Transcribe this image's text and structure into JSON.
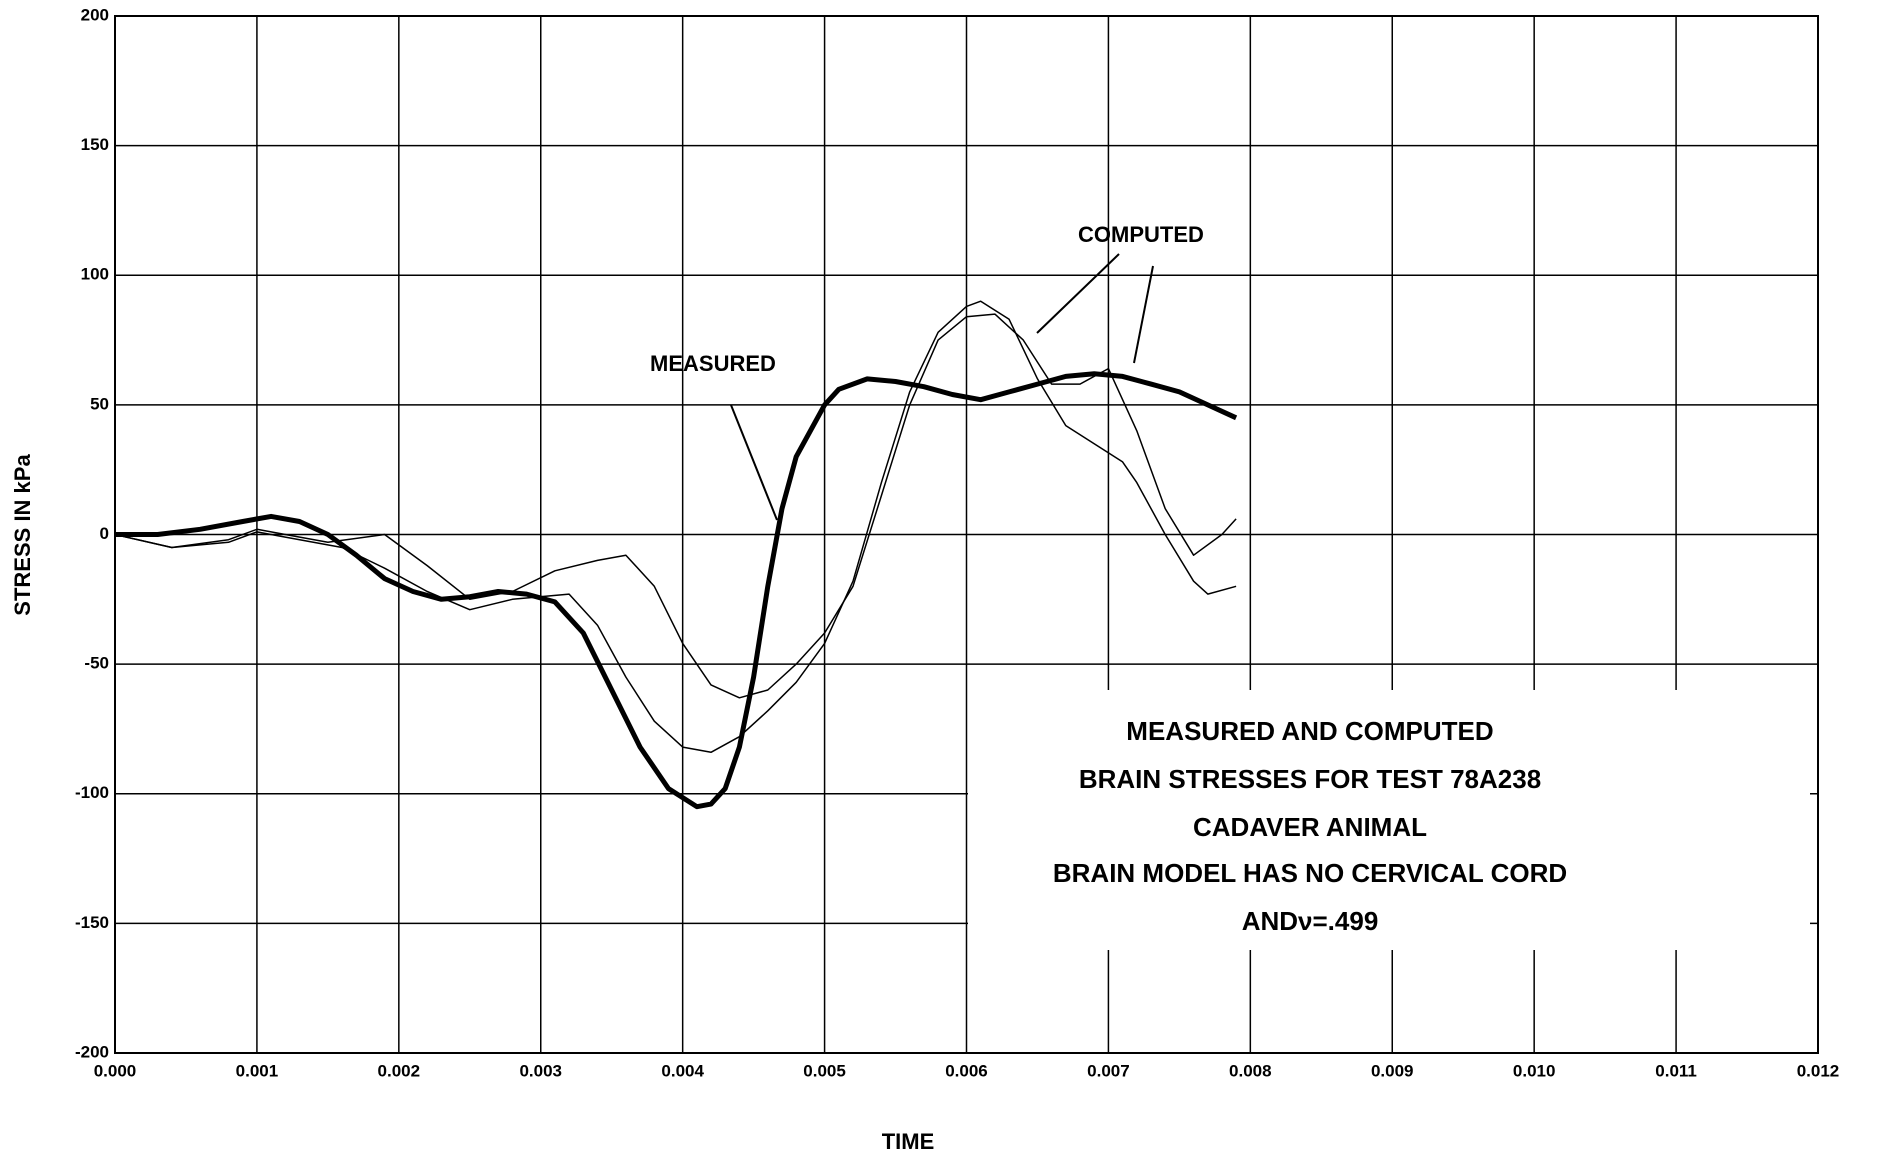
{
  "chart_data": {
    "type": "line",
    "xlabel": "TIME",
    "ylabel": "STRESS IN kPa",
    "xlim": [
      0,
      0.012
    ],
    "ylim": [
      -200,
      200
    ],
    "xticks": [
      {
        "value": 0,
        "label": "0.000"
      },
      {
        "value": 0.001,
        "label": "0.001"
      },
      {
        "value": 0.002,
        "label": "0.002"
      },
      {
        "value": 0.003,
        "label": "0.003"
      },
      {
        "value": 0.004,
        "label": "0.004"
      },
      {
        "value": 0.005,
        "label": "0.005"
      },
      {
        "value": 0.006,
        "label": "0.006"
      },
      {
        "value": 0.007,
        "label": "0.007"
      },
      {
        "value": 0.008,
        "label": "0.008"
      },
      {
        "value": 0.009,
        "label": "0.009"
      },
      {
        "value": 0.01,
        "label": "0.010"
      },
      {
        "value": 0.011,
        "label": "0.011"
      },
      {
        "value": 0.012,
        "label": "0.012"
      }
    ],
    "yticks": [
      -200,
      -150,
      -100,
      -50,
      0,
      50,
      100,
      150,
      200
    ],
    "grid": true,
    "annotations": [
      "MEASURED",
      "COMPUTED"
    ],
    "text_box": [
      "MEASURED AND COMPUTED",
      "BRAIN STRESSES FOR TEST 78A238",
      "CADAVER ANIMAL",
      "BRAIN MODEL HAS NO CERVICAL CORD",
      "ANDν=.499"
    ],
    "series": [
      {
        "color": "#000000",
        "width": 5,
        "x": [
          0,
          0.0003,
          0.0006,
          0.0009,
          0.0011,
          0.0013,
          0.0015,
          0.0017,
          0.0019,
          0.0021,
          0.0023,
          0.0025,
          0.0027,
          0.0029,
          0.0031,
          0.0033,
          0.0035,
          0.0037,
          0.0039,
          0.0041,
          0.0042,
          0.0043,
          0.0044,
          0.0045,
          0.0046,
          0.0047,
          0.0048,
          0.0049,
          0.005,
          0.0051,
          0.0053,
          0.0055,
          0.0057,
          0.0059,
          0.0061,
          0.0063,
          0.0065,
          0.0067,
          0.0069,
          0.0071,
          0.0073,
          0.0075,
          0.0077,
          0.0079
        ],
        "values": [
          0,
          0,
          2,
          5,
          7,
          5,
          0,
          -8,
          -17,
          -22,
          -25,
          -24,
          -22,
          -23,
          -26,
          -38,
          -60,
          -82,
          -98,
          -105,
          -104,
          -98,
          -82,
          -55,
          -20,
          10,
          30,
          40,
          50,
          56,
          60,
          59,
          57,
          54,
          52,
          55,
          58,
          61,
          62,
          61,
          58,
          55,
          50,
          45
        ]
      },
      {
        "color": "#000000",
        "width": 1.5,
        "x": [
          0,
          0.0004,
          0.0008,
          0.001,
          0.0012,
          0.0015,
          0.0019,
          0.0022,
          0.0025,
          0.0028,
          0.0031,
          0.0034,
          0.0036,
          0.0038,
          0.004,
          0.0042,
          0.0044,
          0.0046,
          0.0048,
          0.005,
          0.0052,
          0.0054,
          0.0056,
          0.0058,
          0.006,
          0.0062,
          0.0064,
          0.0066,
          0.0068,
          0.007,
          0.0072,
          0.0074,
          0.0076,
          0.0078,
          0.0079
        ],
        "values": [
          0,
          -5,
          -2,
          2,
          0,
          -3,
          0,
          -12,
          -25,
          -22,
          -14,
          -10,
          -8,
          -20,
          -42,
          -58,
          -63,
          -60,
          -50,
          -38,
          -20,
          15,
          50,
          75,
          84,
          85,
          75,
          58,
          58,
          64,
          40,
          10,
          -8,
          0,
          6
        ]
      },
      {
        "color": "#000000",
        "width": 1.5,
        "x": [
          0,
          0.0004,
          0.0008,
          0.001,
          0.0012,
          0.0016,
          0.0019,
          0.0022,
          0.0025,
          0.0028,
          0.0032,
          0.0034,
          0.0036,
          0.0038,
          0.004,
          0.0042,
          0.0044,
          0.0046,
          0.0048,
          0.005,
          0.0052,
          0.0054,
          0.0056,
          0.0058,
          0.006,
          0.0061,
          0.0063,
          0.0065,
          0.0067,
          0.0069,
          0.0071,
          0.0072,
          0.0074,
          0.0076,
          0.0077,
          0.0079
        ],
        "values": [
          0,
          -5,
          -3,
          1,
          -1,
          -5,
          -13,
          -22,
          -29,
          -25,
          -23,
          -35,
          -55,
          -72,
          -82,
          -84,
          -78,
          -68,
          -57,
          -42,
          -18,
          20,
          55,
          78,
          88,
          90,
          83,
          60,
          42,
          35,
          28,
          20,
          0,
          -18,
          -23,
          -20
        ]
      }
    ]
  }
}
